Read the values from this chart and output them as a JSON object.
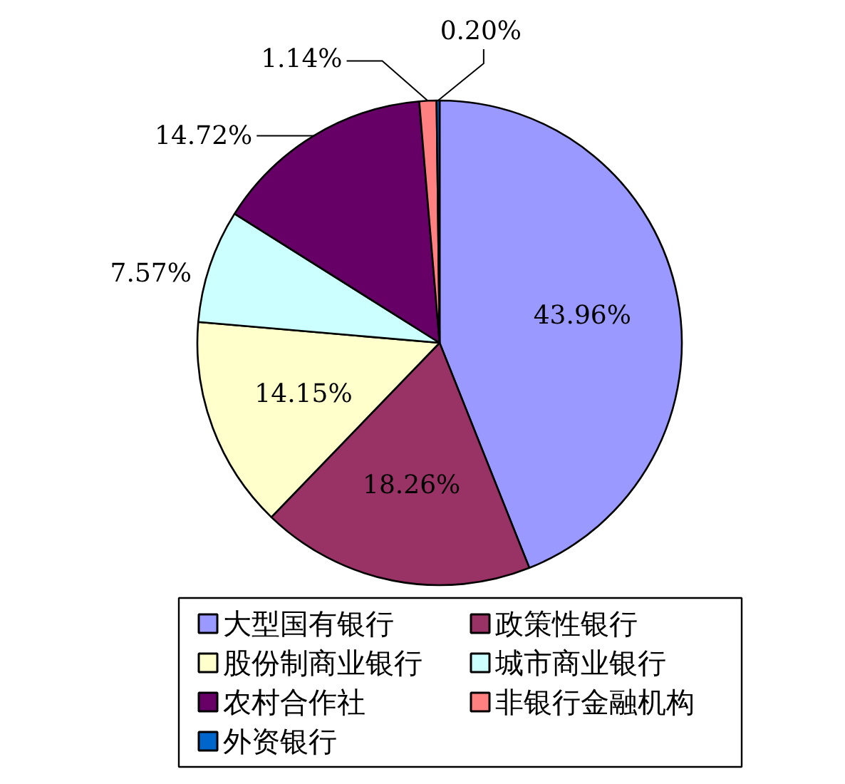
{
  "chart_data": {
    "type": "pie",
    "categories": [
      "大型国有银行",
      "政策性银行",
      "股份制商业银行",
      "城市商业银行",
      "农村合作社",
      "非银行金融机构",
      "外资银行"
    ],
    "values": [
      43.96,
      18.26,
      14.15,
      7.57,
      14.72,
      1.14,
      0.2
    ],
    "colors": [
      "#9999ff",
      "#993366",
      "#ffffcc",
      "#ccffff",
      "#660066",
      "#ff8080",
      "#0066cc"
    ],
    "value_labels": [
      "43.96%",
      "18.26%",
      "14.15%",
      "7.57%",
      "14.72%",
      "1.14%",
      "0.20%"
    ],
    "legend": "bottom"
  }
}
